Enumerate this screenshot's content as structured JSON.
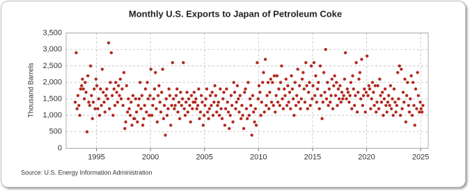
{
  "chart_data": {
    "type": "scatter",
    "title": "Monthly U.S. Exports to Japan of Petroleum Coke",
    "y_label": "Thousand Barrels",
    "source": "Source: U.S. Energy Information Administration",
    "color": "#b22a20",
    "grid": true,
    "xlim": [
      1992.2,
      2025.7
    ],
    "xticks": [
      1995,
      2000,
      2005,
      2010,
      2015,
      2020,
      2025
    ],
    "ylim": [
      0,
      3500
    ],
    "yticks": [
      0,
      500,
      {
        "value": 1000,
        "label": "1,000"
      },
      {
        "value": 1500,
        "label": "1,500"
      },
      {
        "value": 2000,
        "label": "2,000"
      },
      {
        "value": 2500,
        "label": "2,500"
      },
      {
        "value": 3000,
        "label": "3,000"
      },
      {
        "value": 3500,
        "label": "3,500"
      }
    ],
    "x": [
      1993.04,
      1993.13,
      1993.21,
      1993.29,
      1993.38,
      1993.46,
      1993.54,
      1993.63,
      1993.71,
      1993.79,
      1993.88,
      1993.96,
      1994.04,
      1994.13,
      1994.21,
      1994.29,
      1994.38,
      1994.46,
      1994.54,
      1994.63,
      1994.71,
      1994.79,
      1994.88,
      1994.96,
      1995.04,
      1995.13,
      1995.21,
      1995.29,
      1995.38,
      1995.46,
      1995.54,
      1995.63,
      1995.71,
      1995.79,
      1995.88,
      1995.96,
      1996.04,
      1996.13,
      1996.21,
      1996.29,
      1996.38,
      1996.46,
      1996.54,
      1996.63,
      1996.71,
      1996.79,
      1996.88,
      1996.96,
      1997.04,
      1997.13,
      1997.21,
      1997.29,
      1997.38,
      1997.46,
      1997.54,
      1997.63,
      1997.71,
      1997.79,
      1997.88,
      1997.96,
      1998.04,
      1998.13,
      1998.21,
      1998.29,
      1998.38,
      1998.46,
      1998.54,
      1998.63,
      1998.71,
      1998.79,
      1998.88,
      1998.96,
      1999.04,
      1999.13,
      1999.21,
      1999.29,
      1999.38,
      1999.46,
      1999.54,
      1999.63,
      1999.71,
      1999.79,
      1999.88,
      1999.96,
      2000.04,
      2000.13,
      2000.21,
      2000.29,
      2000.38,
      2000.46,
      2000.54,
      2000.63,
      2000.71,
      2000.79,
      2000.88,
      2000.96,
      2001.04,
      2001.13,
      2001.21,
      2001.29,
      2001.38,
      2001.46,
      2001.54,
      2001.63,
      2001.71,
      2001.79,
      2001.88,
      2001.96,
      2002.04,
      2002.13,
      2002.21,
      2002.29,
      2002.38,
      2002.46,
      2002.54,
      2002.63,
      2002.71,
      2002.79,
      2002.88,
      2002.96,
      2003.04,
      2003.13,
      2003.21,
      2003.29,
      2003.38,
      2003.46,
      2003.54,
      2003.63,
      2003.71,
      2003.79,
      2003.88,
      2003.96,
      2004.04,
      2004.13,
      2004.21,
      2004.29,
      2004.38,
      2004.46,
      2004.54,
      2004.63,
      2004.71,
      2004.79,
      2004.88,
      2004.96,
      2005.04,
      2005.13,
      2005.21,
      2005.29,
      2005.38,
      2005.46,
      2005.54,
      2005.63,
      2005.71,
      2005.79,
      2005.88,
      2005.96,
      2006.04,
      2006.13,
      2006.21,
      2006.29,
      2006.38,
      2006.46,
      2006.54,
      2006.63,
      2006.71,
      2006.79,
      2006.88,
      2006.96,
      2007.04,
      2007.13,
      2007.21,
      2007.29,
      2007.38,
      2007.46,
      2007.54,
      2007.63,
      2007.71,
      2007.79,
      2007.88,
      2007.96,
      2008.04,
      2008.13,
      2008.21,
      2008.29,
      2008.38,
      2008.46,
      2008.54,
      2008.63,
      2008.71,
      2008.79,
      2008.88,
      2008.96,
      2009.04,
      2009.13,
      2009.21,
      2009.29,
      2009.38,
      2009.46,
      2009.54,
      2009.63,
      2009.71,
      2009.79,
      2009.88,
      2009.96,
      2010.04,
      2010.13,
      2010.21,
      2010.29,
      2010.38,
      2010.46,
      2010.54,
      2010.63,
      2010.71,
      2010.79,
      2010.88,
      2010.96,
      2011.04,
      2011.13,
      2011.21,
      2011.29,
      2011.38,
      2011.46,
      2011.54,
      2011.63,
      2011.71,
      2011.79,
      2011.88,
      2011.96,
      2012.04,
      2012.13,
      2012.21,
      2012.29,
      2012.38,
      2012.46,
      2012.54,
      2012.63,
      2012.71,
      2012.79,
      2012.88,
      2012.96,
      2013.04,
      2013.13,
      2013.21,
      2013.29,
      2013.38,
      2013.46,
      2013.54,
      2013.63,
      2013.71,
      2013.79,
      2013.88,
      2013.96,
      2014.04,
      2014.13,
      2014.21,
      2014.29,
      2014.38,
      2014.46,
      2014.54,
      2014.63,
      2014.71,
      2014.79,
      2014.88,
      2014.96,
      2015.04,
      2015.13,
      2015.21,
      2015.29,
      2015.38,
      2015.46,
      2015.54,
      2015.63,
      2015.71,
      2015.79,
      2015.88,
      2015.96,
      2016.04,
      2016.13,
      2016.21,
      2016.29,
      2016.38,
      2016.46,
      2016.54,
      2016.63,
      2016.71,
      2016.79,
      2016.88,
      2016.96,
      2017.04,
      2017.13,
      2017.21,
      2017.29,
      2017.38,
      2017.46,
      2017.54,
      2017.63,
      2017.71,
      2017.79,
      2017.88,
      2017.96,
      2018.04,
      2018.13,
      2018.21,
      2018.29,
      2018.38,
      2018.46,
      2018.54,
      2018.63,
      2018.71,
      2018.79,
      2018.88,
      2018.96,
      2019.04,
      2019.13,
      2019.21,
      2019.29,
      2019.38,
      2019.46,
      2019.54,
      2019.63,
      2019.71,
      2019.79,
      2019.88,
      2019.96,
      2020.04,
      2020.13,
      2020.21,
      2020.29,
      2020.38,
      2020.46,
      2020.54,
      2020.63,
      2020.71,
      2020.79,
      2020.88,
      2020.96,
      2021.04,
      2021.13,
      2021.21,
      2021.29,
      2021.38,
      2021.46,
      2021.54,
      2021.63,
      2021.71,
      2021.79,
      2021.88,
      2021.96,
      2022.04,
      2022.13,
      2022.21,
      2022.29,
      2022.38,
      2022.46,
      2022.54,
      2022.63,
      2022.71,
      2022.79,
      2022.88,
      2022.96,
      2023.04,
      2023.13,
      2023.21,
      2023.29,
      2023.38,
      2023.46,
      2023.54,
      2023.63,
      2023.71,
      2023.79,
      2023.88,
      2023.96,
      2024.04,
      2024.13,
      2024.21,
      2024.29,
      2024.38,
      2024.46,
      2024.54,
      2024.63,
      2024.71,
      2024.79,
      2024.88,
      2024.96,
      2025.04,
      2025.13,
      2025.21
    ],
    "values": [
      1400,
      2900,
      1200,
      1600,
      1300,
      1000,
      1800,
      1900,
      2100,
      1800,
      1500,
      2000,
      1700,
      500,
      2200,
      1400,
      1300,
      2500,
      1600,
      900,
      1400,
      1800,
      1200,
      2100,
      1900,
      1200,
      1500,
      1000,
      1800,
      1300,
      2400,
      1700,
      1400,
      1100,
      1600,
      1800,
      1500,
      3200,
      1200,
      2000,
      2900,
      1600,
      1000,
      1800,
      1300,
      2000,
      1700,
      1400,
      1900,
      1600,
      2100,
      1500,
      1800,
      1300,
      2300,
      600,
      800,
      1900,
      1100,
      1500,
      1200,
      1000,
      1400,
      700,
      1600,
      900,
      900,
      1500,
      1100,
      800,
      1300,
      1500,
      2000,
      1200,
      1600,
      700,
      900,
      1300,
      1800,
      1100,
      2000,
      1500,
      1000,
      1600,
      2400,
      1000,
      1300,
      1500,
      1800,
      2300,
      1200,
      800,
      1600,
      1900,
      1400,
      1100,
      1700,
      2400,
      900,
      1300,
      400,
      1500,
      1000,
      1200,
      1800,
      1600,
      700,
      1300,
      2600,
      1500,
      1200,
      1300,
      1600,
      1800,
      1100,
      1400,
      900,
      1700,
      1300,
      1500,
      2600,
      1200,
      1000,
      1400,
      1700,
      1100,
      1500,
      1300,
      800,
      1600,
      1200,
      1400,
      1700,
      1400,
      1500,
      1200,
      1300,
      1800,
      900,
      1100,
      1600,
      1400,
      700,
      1000,
      1300,
      1500,
      1800,
      1100,
      900,
      1200,
      1600,
      1300,
      1700,
      1000,
      1400,
      1900,
      1600,
      1100,
      1300,
      1400,
      1000,
      1800,
      1200,
      900,
      1500,
      1700,
      700,
      1200,
      1800,
      1400,
      1100,
      600,
      1000,
      1600,
      1300,
      800,
      2000,
      1700,
      1200,
      1400,
      1900,
      1500,
      1100,
      1600,
      900,
      1300,
      1000,
      600,
      1700,
      1800,
      1200,
      900,
      2000,
      1000,
      1500,
      1300,
      400,
      1600,
      1100,
      800,
      1200,
      700,
      2600,
      1500,
      1900,
      1700,
      1000,
      1400,
      2000,
      2300,
      1100,
      2700,
      1300,
      1600,
      2000,
      1200,
      1700,
      2100,
      1400,
      2000,
      1300,
      2200,
      1100,
      1600,
      2200,
      1400,
      1800,
      1300,
      2000,
      2500,
      1500,
      1200,
      1800,
      1600,
      2100,
      1300,
      1900,
      1400,
      1700,
      1200,
      2200,
      1800,
      1500,
      1000,
      2000,
      1300,
      1600,
      2400,
      1400,
      1900,
      1200,
      1500,
      2100,
      2300,
      1800,
      1400,
      2600,
      1900,
      1200,
      1700,
      2000,
      1300,
      2500,
      1500,
      1900,
      2600,
      1600,
      2200,
      1400,
      1800,
      2000,
      1200,
      2500,
      1600,
      900,
      1400,
      2300,
      1700,
      3000,
      1500,
      2000,
      1300,
      1800,
      1400,
      1600,
      2100,
      1200,
      1900,
      2200,
      1600,
      2000,
      1300,
      1800,
      1500,
      1900,
      1400,
      1700,
      1500,
      1600,
      2100,
      2900,
      1500,
      1800,
      1700,
      1400,
      1600,
      2000,
      1200,
      2200,
      1800,
      1300,
      1600,
      2600,
      1100,
      1700,
      2100,
      2300,
      1500,
      2700,
      1300,
      1600,
      1800,
      1100,
      1700,
      2800,
      1600,
      1900,
      1800,
      1200,
      1500,
      2000,
      1700,
      1300,
      1900,
      1100,
      1400,
      1900,
      1200,
      2100,
      1600,
      1400,
      1700,
      1000,
      1500,
      1800,
      1300,
      1100,
      1400,
      1600,
      1300,
      1900,
      1200,
      1500,
      1000,
      1800,
      1400,
      1100,
      1300,
      2300,
      1500,
      2500,
      1000,
      2400,
      1200,
      1700,
      1400,
      2100,
      800,
      1600,
      2000,
      1300,
      1100,
      1500,
      2200,
      1000,
      2000,
      1300,
      700,
      1800,
      1200,
      2300,
      1600,
      1100,
      1400,
      1200,
      1100,
      1300
    ]
  }
}
